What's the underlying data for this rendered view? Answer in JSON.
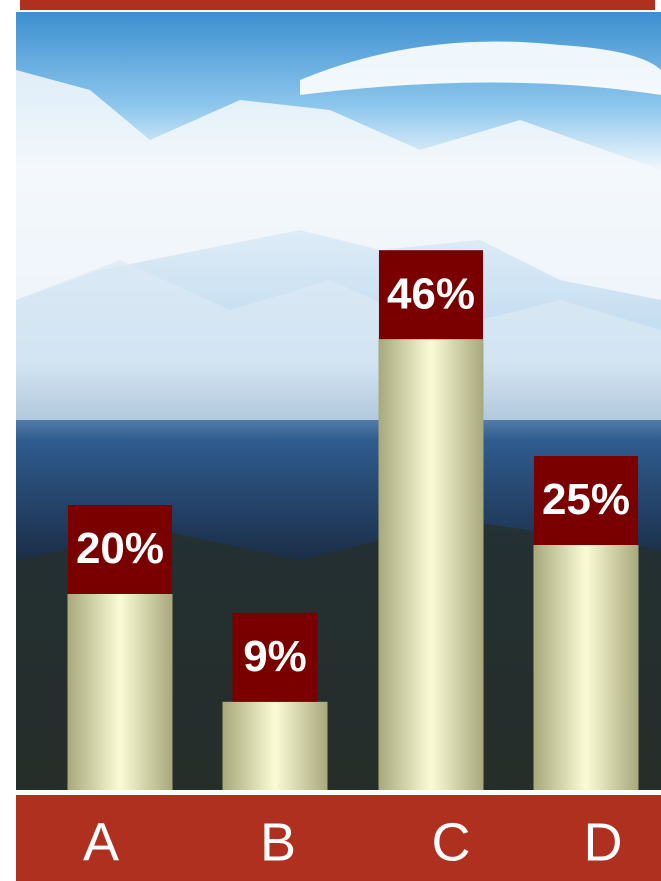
{
  "chart_data": {
    "type": "bar",
    "categories": [
      "A",
      "B",
      "C",
      "D"
    ],
    "values": [
      20,
      9,
      46,
      25
    ],
    "value_labels": [
      "20%",
      "9%",
      "46%",
      "25%"
    ],
    "color": "#f6f6c8"
  }
}
